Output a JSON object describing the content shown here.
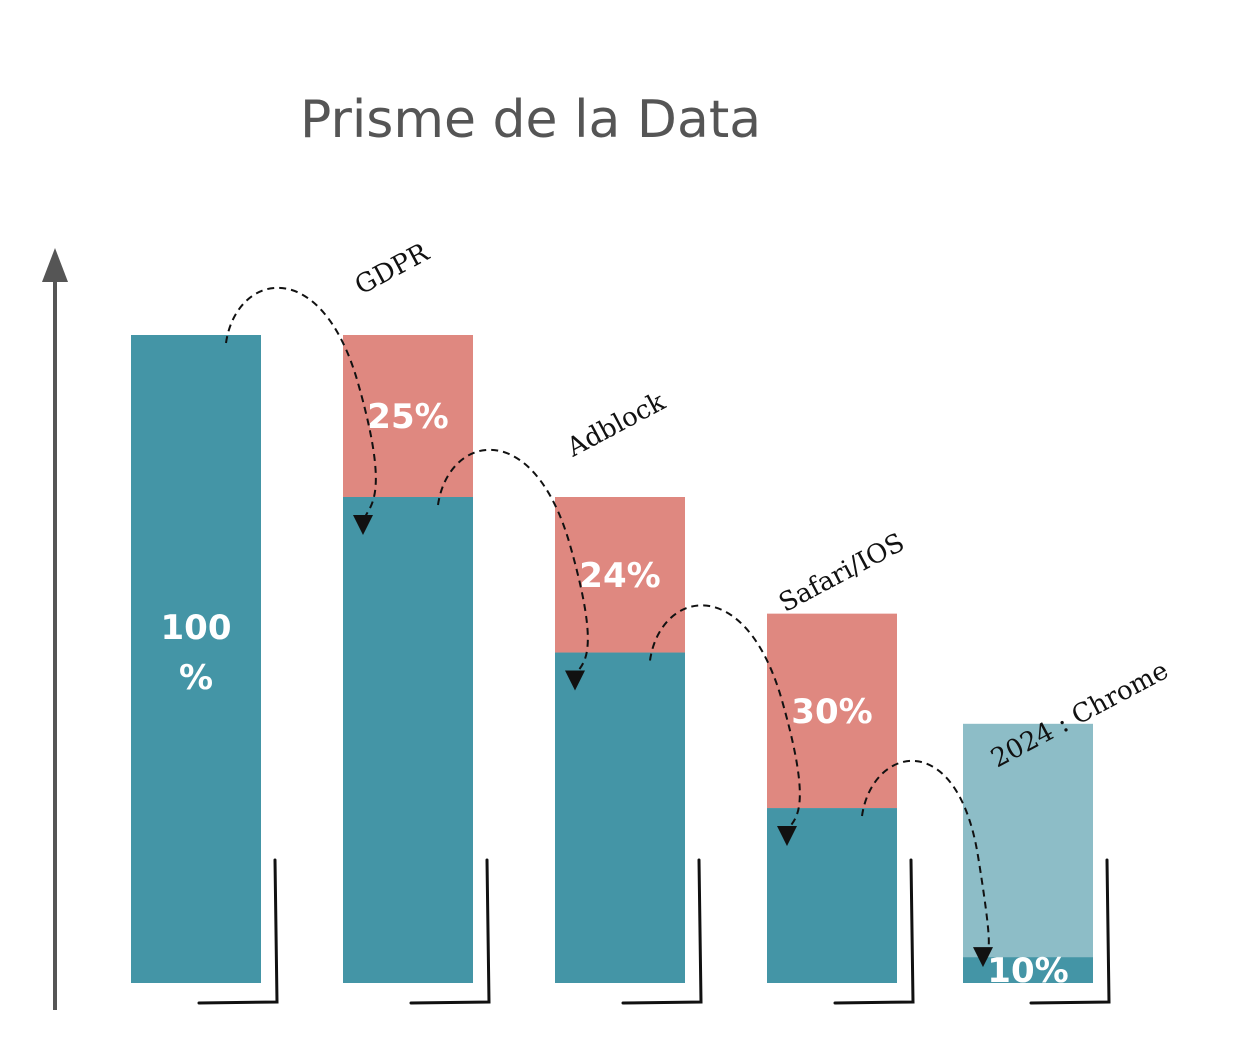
{
  "chart_data": {
    "type": "bar",
    "title": "Prisme de la Data",
    "categories": [
      "",
      "GDPR",
      "Adblock",
      "Safari/IOS",
      "2024 : Chrome"
    ],
    "bars": [
      {
        "total": 100,
        "lost": 0,
        "label_lines": [
          "100",
          "%"
        ]
      },
      {
        "total": 100,
        "lost": 25,
        "label_lines": [
          "25%"
        ]
      },
      {
        "total": 75,
        "lost": 24,
        "label_lines": [
          "24%"
        ]
      },
      {
        "total": 57,
        "lost": 30,
        "label_lines": [
          "30%"
        ]
      },
      {
        "total": 40,
        "lost": 36,
        "label_lines": [
          "10%"
        ]
      }
    ],
    "steps": [
      "GDPR",
      "Adblock",
      "Safari/IOS",
      "2024 : Chrome"
    ],
    "ylim": [
      0,
      100
    ],
    "colors": {
      "kept": "#4495a6",
      "lost": "#df8880",
      "lost_final": "#8dbdc7",
      "axis": "#555555",
      "title": "#555555"
    }
  }
}
